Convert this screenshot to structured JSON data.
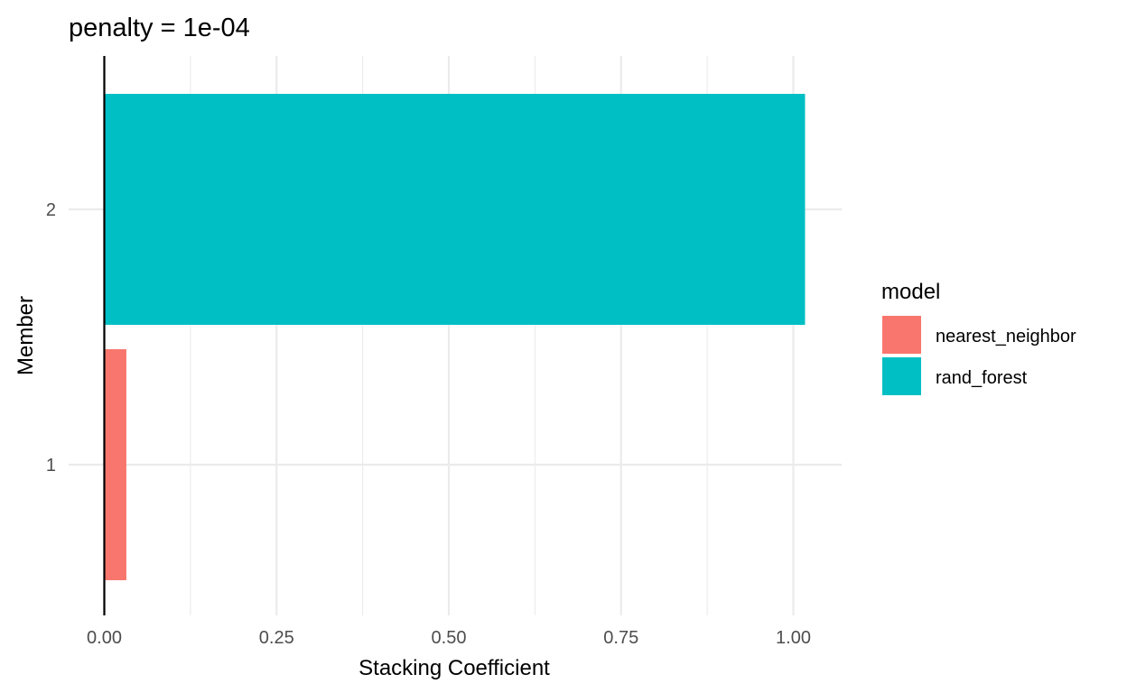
{
  "chart_data": {
    "type": "bar",
    "orientation": "horizontal",
    "title": "penalty = 1e-04",
    "xlabel": "Stacking Coefficient",
    "ylabel": "Member",
    "xlim": [
      0,
      1.05
    ],
    "x_ticks": [
      "0.00",
      "0.25",
      "0.50",
      "0.75",
      "1.00"
    ],
    "categories": [
      "1",
      "2"
    ],
    "bars": [
      {
        "member": "1",
        "model": "nearest_neighbor",
        "value": 0.032
      },
      {
        "member": "2",
        "model": "rand_forest",
        "value": 1.017
      }
    ],
    "legend": {
      "title": "model",
      "position": "right",
      "entries": [
        {
          "name": "nearest_neighbor",
          "color": "#F8766D"
        },
        {
          "name": "rand_forest",
          "color": "#00BFC4"
        }
      ]
    },
    "grid": true
  }
}
